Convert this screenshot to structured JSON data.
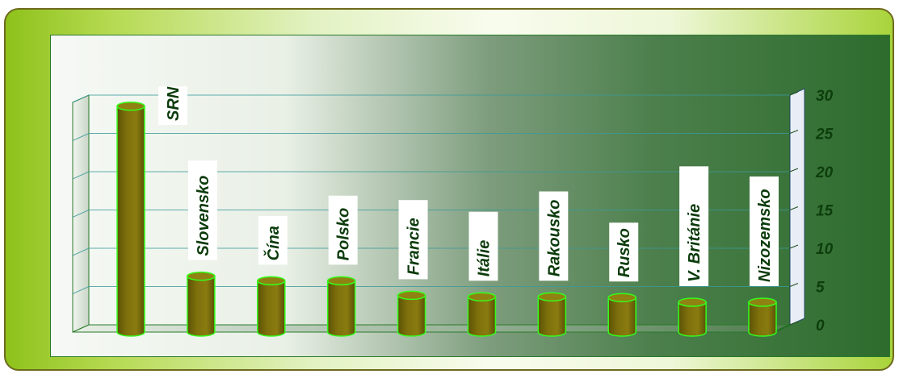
{
  "chart_data": {
    "type": "bar",
    "categories": [
      "SRN",
      "Slovensko",
      "Čína",
      "Polsko",
      "Francie",
      "Itálie",
      "Rakousko",
      "Rusko",
      "V. Británie",
      "Nizozemsko"
    ],
    "values": [
      29.5,
      7.3,
      6.7,
      6.7,
      4.8,
      4.6,
      4.6,
      4.5,
      3.9,
      3.9
    ],
    "ylim": [
      0,
      30
    ],
    "yticks": [
      "0",
      "5",
      "10",
      "15",
      "20",
      "25",
      "30"
    ],
    "grid": true,
    "y_axis_side": "right",
    "bar_color": "#7a6d0a",
    "bar_outline_color": "#33ff1a",
    "label_orientation": "vertical"
  }
}
